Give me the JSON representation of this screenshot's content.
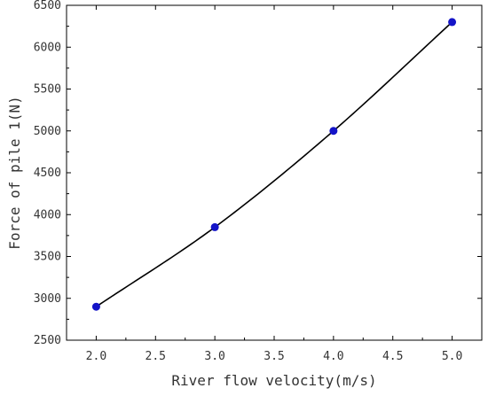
{
  "chart_data": {
    "type": "line",
    "title": "",
    "xlabel": "River flow velocity(m/s)",
    "ylabel": "Force of pile 1(N)",
    "xlim": [
      1.75,
      5.25
    ],
    "ylim": [
      2500,
      6500
    ],
    "xticks": [
      2.0,
      2.5,
      3.0,
      3.5,
      4.0,
      4.5,
      5.0
    ],
    "xtick_labels": [
      "2.0",
      "2.5",
      "3.0",
      "3.5",
      "4.0",
      "4.5",
      "5.0"
    ],
    "yticks": [
      2500,
      3000,
      3500,
      4000,
      4500,
      5000,
      5500,
      6000,
      6500
    ],
    "ytick_labels": [
      "2500",
      "3000",
      "3500",
      "4000",
      "4500",
      "5000",
      "5500",
      "6000",
      "6500"
    ],
    "grid": false,
    "legend": "none",
    "series": [
      {
        "x": [
          2.0,
          3.0,
          4.0,
          5.0
        ],
        "y": [
          2900,
          3850,
          5000,
          6300
        ],
        "marker_color": "#1414c8",
        "line_color": "#000000"
      }
    ]
  }
}
